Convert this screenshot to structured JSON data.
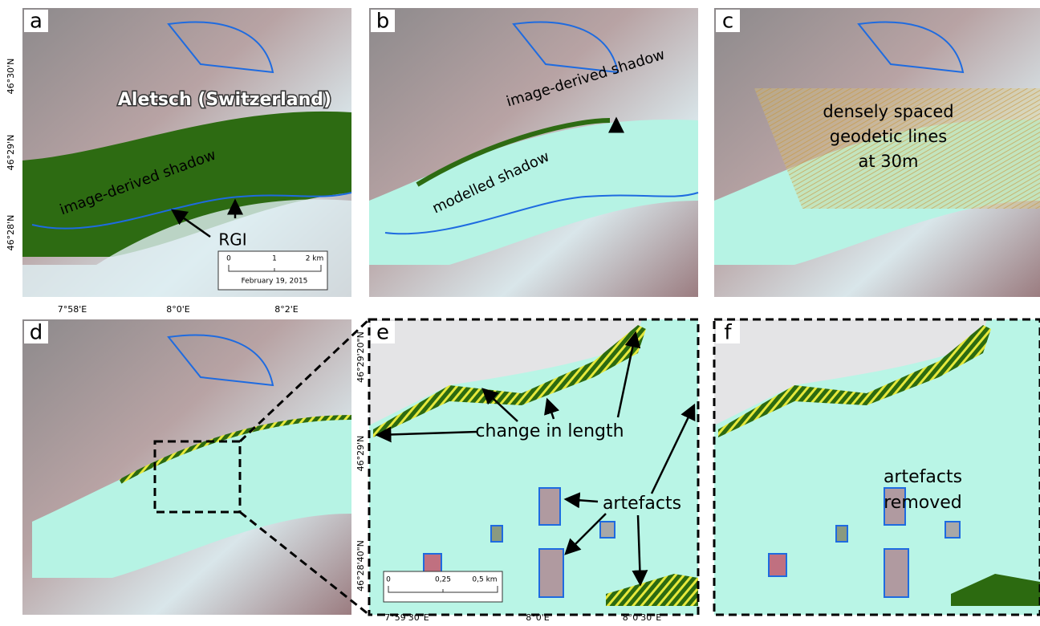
{
  "panels": [
    {
      "label": "a"
    },
    {
      "label": "b"
    },
    {
      "label": "c"
    },
    {
      "label": "d"
    },
    {
      "label": "e"
    },
    {
      "label": "f"
    }
  ],
  "axes": {
    "lat_top": [
      "46°30'N",
      "46°29'N",
      "46°28'N"
    ],
    "lon_top": [
      "7°58'E",
      "8°0'E",
      "8°2'E"
    ],
    "lat_zoom": [
      "46°29'20\"N",
      "46°29'N",
      "46°28'40\"N"
    ],
    "lon_zoom": [
      "7°59'30\"E",
      "8°0'E",
      "8°0'30\"E"
    ]
  },
  "annotations": {
    "a": {
      "title": "Aletsch (Switzerland)",
      "shadow": "image-derived shadow",
      "rgi": "RGI",
      "scale": [
        "0",
        "1",
        "2 km"
      ],
      "date": "February 19, 2015"
    },
    "b": {
      "shadow": "image-derived shadow",
      "modelled": "modelled shadow"
    },
    "c": {
      "lines": [
        "densely spaced",
        "geodetic lines",
        "at 30m"
      ]
    },
    "e": {
      "length": "change in length",
      "artefacts": "artefacts",
      "scale": [
        "0",
        "0,25",
        "0,5 km"
      ]
    },
    "f": {
      "lines": [
        "artefacts",
        "removed"
      ]
    }
  }
}
